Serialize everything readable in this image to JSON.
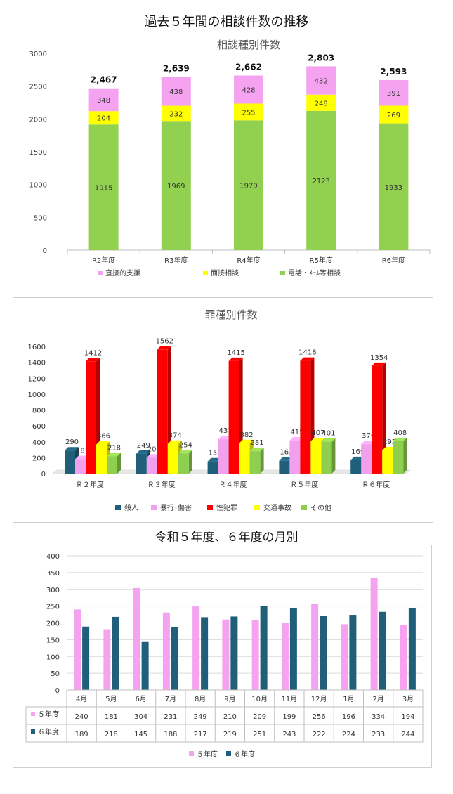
{
  "page_title": "過去５年間の相談件数の推移",
  "subtitle": "令和５年度、６年度の月別",
  "chart_data": [
    {
      "type": "bar",
      "stacked": true,
      "title": "相談種別件数",
      "categories": [
        "R2年度",
        "R3年度",
        "R4年度",
        "R5年度",
        "R6年度"
      ],
      "series": [
        {
          "name": "電話・ﾒｰﾙ等相談",
          "color": "#92d050",
          "values": [
            1915,
            1969,
            1979,
            2123,
            1933
          ]
        },
        {
          "name": "面接相談",
          "color": "#ffff00",
          "values": [
            204,
            232,
            255,
            248,
            269
          ]
        },
        {
          "name": "直接的支援",
          "color": "#f5a3f0",
          "values": [
            348,
            438,
            428,
            432,
            391
          ]
        }
      ],
      "totals": [
        "2,467",
        "2,639",
        "2,662",
        "2,803",
        "2,593"
      ],
      "legend_order": [
        "直接的支援",
        "面接相談",
        "電話・ﾒｰﾙ等相談"
      ],
      "yticks": [
        "0",
        "500",
        "1000",
        "1500",
        "2000",
        "2500",
        "3000"
      ],
      "ylim": [
        0,
        3000
      ],
      "legend_position": "bottom",
      "grid": false
    },
    {
      "type": "bar",
      "style": "3d-clustered",
      "title": "罪種別件数",
      "categories": [
        "Ｒ２年度",
        "Ｒ３年度",
        "Ｒ４年度",
        "Ｒ５年度",
        "Ｒ６年度"
      ],
      "series": [
        {
          "name": "殺人",
          "color": "#1f5f7a",
          "values": [
            290,
            249,
            153,
            162,
            169
          ]
        },
        {
          "name": "暴行･傷害",
          "color": "#f0a0ec",
          "values": [
            181,
            200,
            431,
            415,
            370
          ]
        },
        {
          "name": "性犯罪",
          "color": "#ff0000",
          "values": [
            1412,
            1562,
            1415,
            1418,
            1354
          ]
        },
        {
          "name": "交通事故",
          "color": "#ffff00",
          "values": [
            366,
            374,
            382,
            407,
            292
          ]
        },
        {
          "name": "その他",
          "color": "#8fcf4f",
          "values": [
            218,
            254,
            281,
            401,
            408
          ]
        }
      ],
      "yticks": [
        "0",
        "200",
        "400",
        "600",
        "800",
        "1000",
        "1200",
        "1400",
        "1600"
      ],
      "ylim": [
        0,
        1600
      ],
      "legend_position": "bottom",
      "grid": false
    },
    {
      "type": "bar",
      "title": "",
      "categories": [
        "4月",
        "5月",
        "6月",
        "7月",
        "8月",
        "9月",
        "10月",
        "11月",
        "12月",
        "1月",
        "2月",
        "3月"
      ],
      "series": [
        {
          "name": "５年度",
          "color": "#f5a3f0",
          "values": [
            240,
            181,
            304,
            231,
            249,
            210,
            209,
            199,
            256,
            196,
            334,
            194
          ]
        },
        {
          "name": "６年度",
          "color": "#1f5f7a",
          "values": [
            189,
            218,
            145,
            188,
            217,
            219,
            251,
            243,
            222,
            224,
            233,
            244
          ]
        }
      ],
      "yticks": [
        "0",
        "50",
        "100",
        "150",
        "200",
        "250",
        "300",
        "350",
        "400"
      ],
      "ylim": [
        0,
        400
      ],
      "data_table": true,
      "legend_position": "bottom",
      "grid": true
    }
  ]
}
